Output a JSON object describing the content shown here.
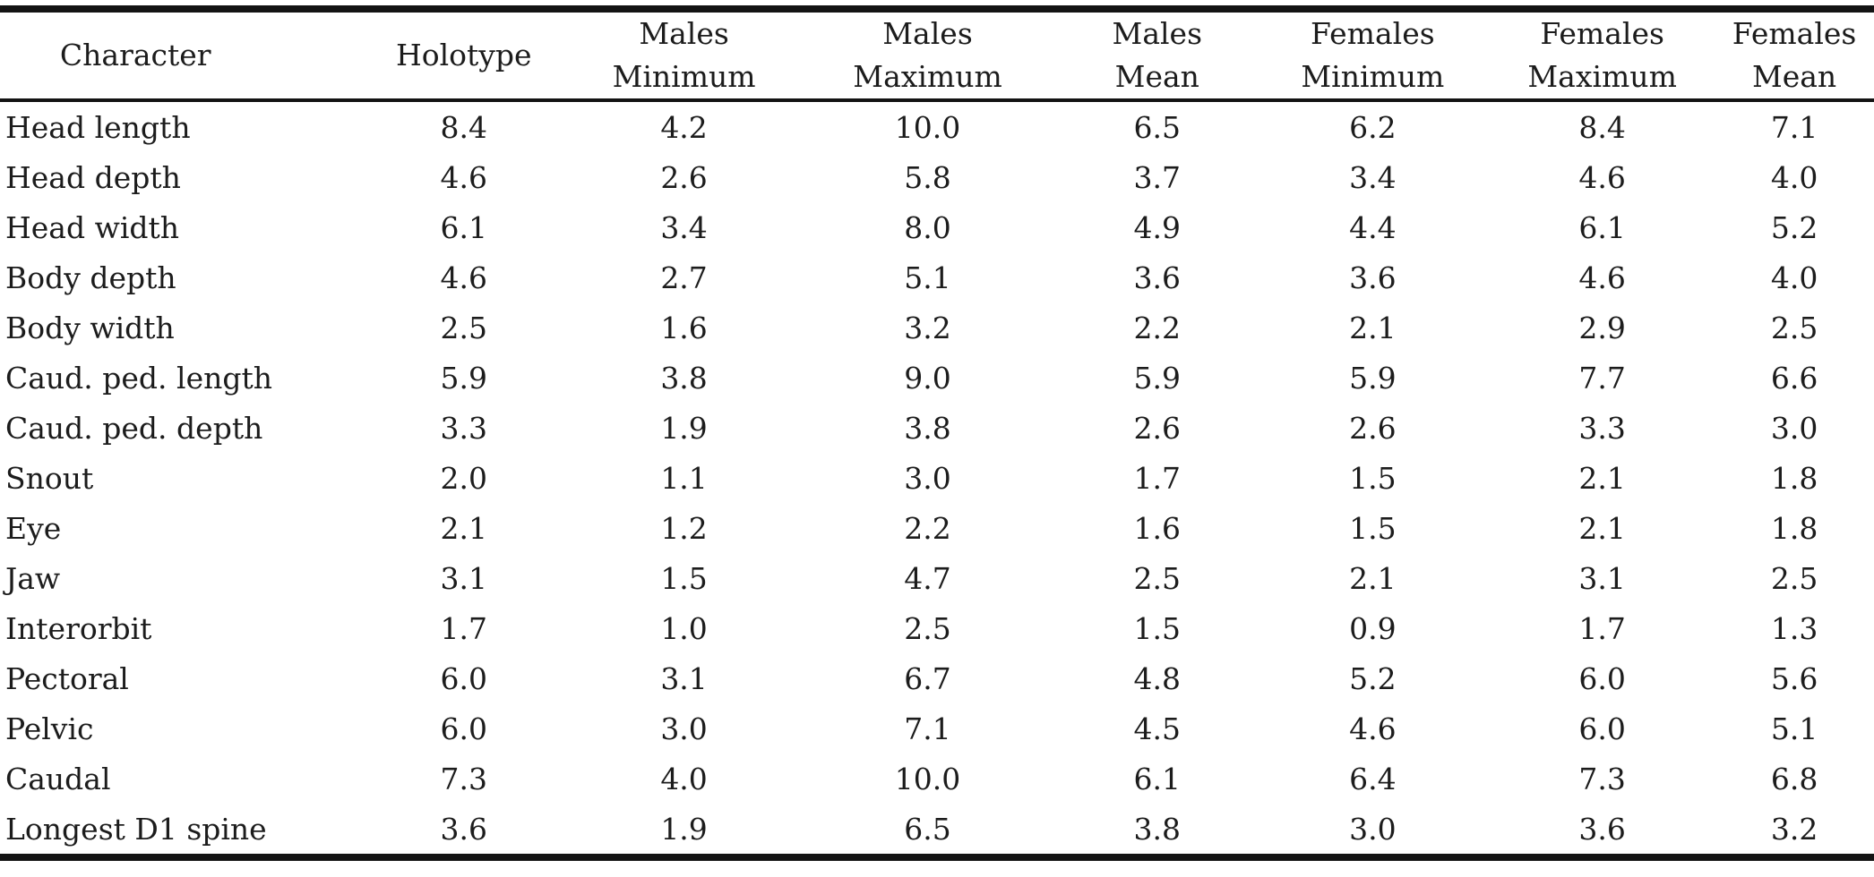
{
  "table": {
    "columns": [
      {
        "label": "Character"
      },
      {
        "label": "Holotype"
      },
      {
        "label": "Males\nMinimum"
      },
      {
        "label": "Males\nMaximum"
      },
      {
        "label": "Males\nMean"
      },
      {
        "label": "Females\nMinimum"
      },
      {
        "label": "Females\nMaximum"
      },
      {
        "label": "Females\nMean"
      }
    ],
    "rows": [
      {
        "character": "Head length",
        "values": [
          "8.4",
          "4.2",
          "10.0",
          "6.5",
          "6.2",
          "8.4",
          "7.1"
        ]
      },
      {
        "character": "Head depth",
        "values": [
          "4.6",
          "2.6",
          "5.8",
          "3.7",
          "3.4",
          "4.6",
          "4.0"
        ]
      },
      {
        "character": "Head width",
        "values": [
          "6.1",
          "3.4",
          "8.0",
          "4.9",
          "4.4",
          "6.1",
          "5.2"
        ]
      },
      {
        "character": "Body depth",
        "values": [
          "4.6",
          "2.7",
          "5.1",
          "3.6",
          "3.6",
          "4.6",
          "4.0"
        ]
      },
      {
        "character": "Body width",
        "values": [
          "2.5",
          "1.6",
          "3.2",
          "2.2",
          "2.1",
          "2.9",
          "2.5"
        ]
      },
      {
        "character": "Caud. ped. length",
        "values": [
          "5.9",
          "3.8",
          "9.0",
          "5.9",
          "5.9",
          "7.7",
          "6.6"
        ]
      },
      {
        "character": "Caud. ped. depth",
        "values": [
          "3.3",
          "1.9",
          "3.8",
          "2.6",
          "2.6",
          "3.3",
          "3.0"
        ]
      },
      {
        "character": "Snout",
        "values": [
          "2.0",
          "1.1",
          "3.0",
          "1.7",
          "1.5",
          "2.1",
          "1.8"
        ]
      },
      {
        "character": "Eye",
        "values": [
          "2.1",
          "1.2",
          "2.2",
          "1.6",
          "1.5",
          "2.1",
          "1.8"
        ]
      },
      {
        "character": "Jaw",
        "values": [
          "3.1",
          "1.5",
          "4.7",
          "2.5",
          "2.1",
          "3.1",
          "2.5"
        ]
      },
      {
        "character": "Interorbit",
        "values": [
          "1.7",
          "1.0",
          "2.5",
          "1.5",
          "0.9",
          "1.7",
          "1.3"
        ]
      },
      {
        "character": "Pectoral",
        "values": [
          "6.0",
          "3.1",
          "6.7",
          "4.8",
          "5.2",
          "6.0",
          "5.6"
        ]
      },
      {
        "character": "Pelvic",
        "values": [
          "6.0",
          "3.0",
          "7.1",
          "4.5",
          "4.6",
          "6.0",
          "5.1"
        ]
      },
      {
        "character": "Caudal",
        "values": [
          "7.3",
          "4.0",
          "10.0",
          "6.1",
          "6.4",
          "7.3",
          "6.8"
        ]
      },
      {
        "character": "Longest D1 spine",
        "values": [
          "3.6",
          "1.9",
          "6.5",
          "3.8",
          "3.0",
          "3.6",
          "3.2"
        ]
      }
    ]
  },
  "colors": {
    "text": "#1c1c1c",
    "rule": "#131313",
    "background": "#ffffff"
  }
}
